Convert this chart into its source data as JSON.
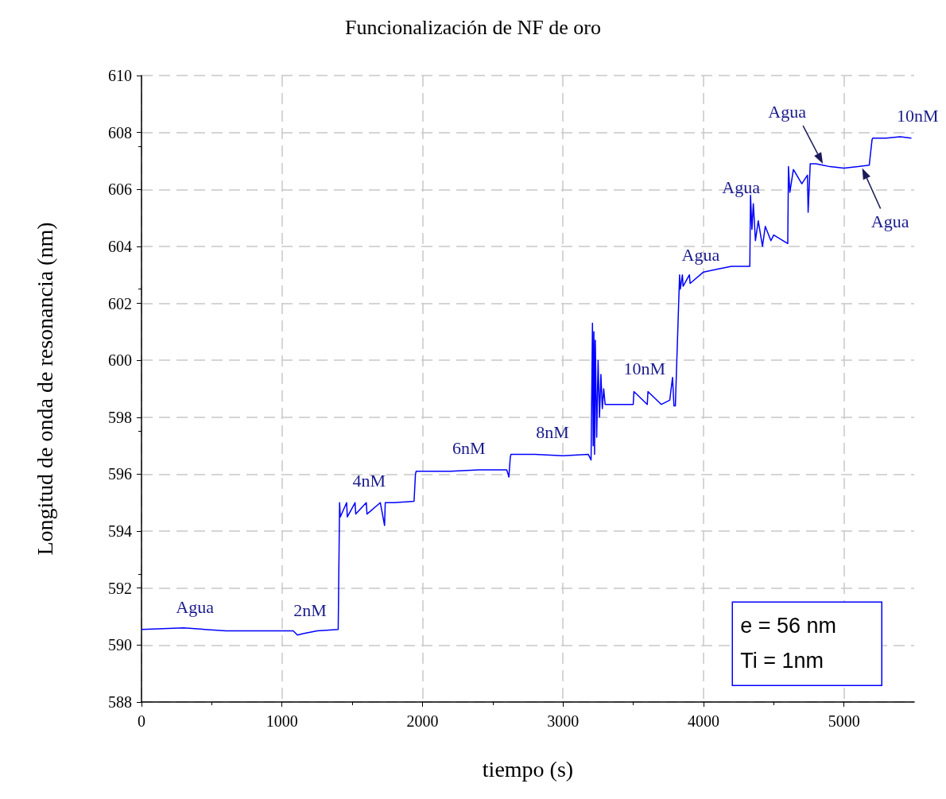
{
  "chart_data": {
    "type": "line",
    "title": "Funcionalización de NF de oro",
    "xlabel": "tiempo (s)",
    "ylabel": "Longitud de onda de resonancia (nm)",
    "xlim": [
      0,
      5500
    ],
    "xticks": [
      0,
      1000,
      2000,
      3000,
      4000,
      5000
    ],
    "ylim": [
      588,
      610
    ],
    "yticks": [
      588,
      590,
      592,
      594,
      596,
      598,
      600,
      602,
      604,
      606,
      608,
      610
    ],
    "grid": true,
    "marker": "none",
    "line_style": "solid",
    "series": [
      {
        "color": "#0000ff",
        "x": [
          0,
          300,
          600,
          900,
          1080,
          1110,
          1150,
          1250,
          1400,
          1410,
          1415,
          1460,
          1465,
          1520,
          1525,
          1600,
          1605,
          1700,
          1730,
          1735,
          1800,
          1940,
          1950,
          1955,
          2200,
          2400,
          2600,
          2615,
          2625,
          2630,
          2800,
          3000,
          3180,
          3200,
          3210,
          3215,
          3220,
          3225,
          3230,
          3240,
          3250,
          3260,
          3270,
          3280,
          3290,
          3300,
          3500,
          3505,
          3600,
          3605,
          3700,
          3760,
          3780,
          3790,
          3800,
          3830,
          3835,
          3850,
          3855,
          3900,
          3905,
          4000,
          4100,
          4200,
          4330,
          4335,
          4345,
          4355,
          4370,
          4390,
          4420,
          4440,
          4480,
          4500,
          4600,
          4605,
          4615,
          4640,
          4700,
          4740,
          4745,
          4760,
          4800,
          4850,
          4900,
          5000,
          5100,
          5180,
          5200,
          5205,
          5300,
          5400,
          5480
        ],
        "values": [
          590.55,
          590.6,
          590.5,
          590.5,
          590.5,
          590.35,
          590.4,
          590.5,
          590.55,
          595.0,
          594.5,
          595.0,
          594.5,
          595.0,
          594.6,
          595.0,
          594.6,
          595.0,
          594.2,
          595.0,
          595.0,
          595.05,
          596.0,
          596.1,
          596.1,
          596.15,
          596.15,
          595.9,
          596.6,
          596.7,
          596.7,
          596.65,
          596.7,
          596.5,
          601.3,
          597.0,
          601.0,
          596.7,
          600.7,
          597.3,
          600.0,
          598.0,
          599.5,
          598.3,
          599.0,
          598.45,
          598.45,
          598.9,
          598.45,
          598.9,
          598.45,
          598.6,
          599.4,
          598.4,
          598.4,
          603.0,
          602.5,
          603.0,
          602.6,
          603.0,
          602.7,
          603.1,
          603.2,
          603.3,
          603.3,
          605.8,
          604.6,
          605.5,
          604.2,
          604.9,
          604.0,
          604.7,
          604.2,
          604.4,
          604.1,
          606.8,
          605.9,
          606.7,
          606.2,
          606.5,
          605.2,
          606.9,
          606.9,
          606.85,
          606.8,
          606.75,
          606.8,
          606.85,
          607.75,
          607.8,
          607.8,
          607.85,
          607.8
        ]
      }
    ],
    "annotations": [
      {
        "text": "Agua",
        "x": 380,
        "y": 590.55
      },
      {
        "text": "2nM",
        "x": 1200,
        "y": 590.45
      },
      {
        "text": "4nM",
        "x": 1620,
        "y": 595.0
      },
      {
        "text": "6nM",
        "x": 2330,
        "y": 596.15
      },
      {
        "text": "8nM",
        "x": 2925,
        "y": 596.7
      },
      {
        "text": "10nM",
        "x": 3580,
        "y": 598.45
      },
      {
        "text": "Agua",
        "x": 3980,
        "y": 603.1
      },
      {
        "text": "Agua",
        "x": 4335,
        "y": 605.8
      },
      {
        "text": "Agua",
        "x": 4850,
        "y": 606.9
      },
      {
        "text": "10nM",
        "x": 5400,
        "y": 607.85
      },
      {
        "text": "Agua",
        "x": 5130,
        "y": 606.75
      },
      "e = 56 nm\nTi = 1nm"
    ]
  }
}
